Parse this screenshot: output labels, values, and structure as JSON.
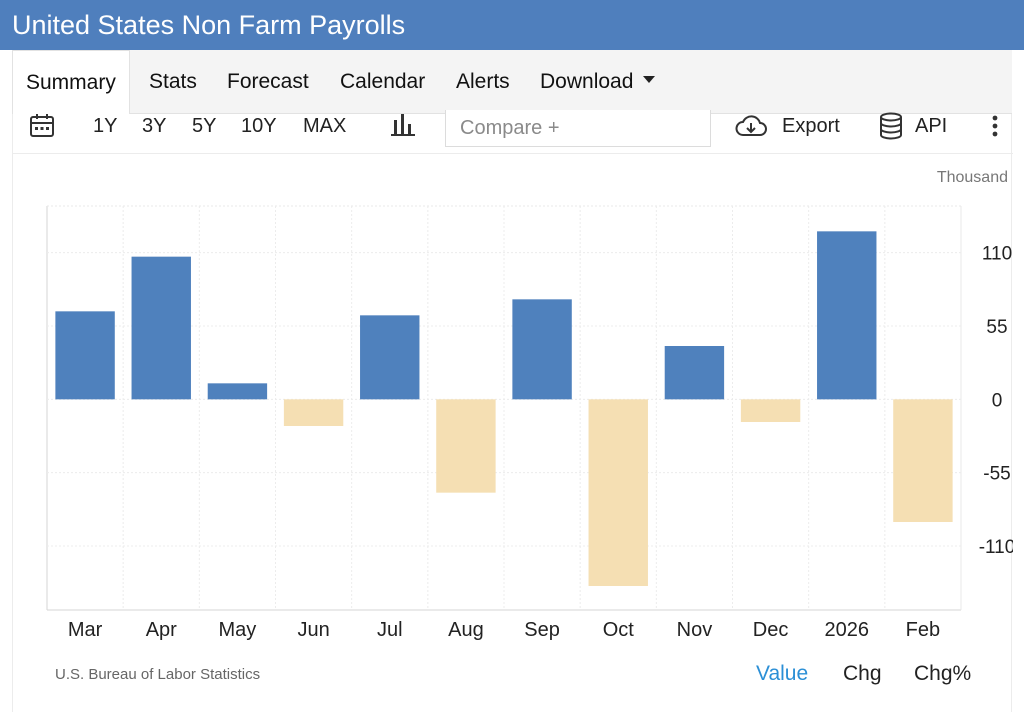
{
  "header": {
    "title": "United States Non Farm Payrolls"
  },
  "tabs": [
    {
      "label": "Summary",
      "active": true
    },
    {
      "label": "Stats"
    },
    {
      "label": "Forecast"
    },
    {
      "label": "Calendar"
    },
    {
      "label": "Alerts"
    },
    {
      "label": "Download"
    }
  ],
  "toolbar": {
    "ranges": [
      "1Y",
      "3Y",
      "5Y",
      "10Y",
      "MAX"
    ],
    "compare_placeholder": "Compare +",
    "export_label": "Export",
    "api_label": "API",
    "icons": [
      "calendar-icon",
      "bar-chart-icon",
      "cloud-download-icon",
      "database-icon",
      "more-vert-icon"
    ]
  },
  "colors": {
    "header": "#4f7fbd",
    "positive": "#4f81bd",
    "negative": "#f5dfb3",
    "active_option": "#2b8fd6"
  },
  "chart_data": {
    "type": "bar",
    "unit_label": "Thousand",
    "categories": [
      "Mar",
      "Apr",
      "May",
      "Jun",
      "Jul",
      "Aug",
      "Sep",
      "Oct",
      "Nov",
      "Dec",
      "2026",
      "Feb"
    ],
    "values": [
      66,
      107,
      12,
      -20,
      63,
      -70,
      75,
      -140,
      40,
      -17,
      126,
      -92
    ],
    "yticks": [
      110,
      55,
      0,
      -55,
      -110
    ],
    "ytick_labels": [
      "110",
      "55",
      "0",
      "-55",
      "-110"
    ],
    "ylim": [
      -158,
      145
    ],
    "grid": true,
    "y_axis_side": "right"
  },
  "footer": {
    "source": "U.S. Bureau of Labor Statistics",
    "options": [
      {
        "label": "Value",
        "active": true
      },
      {
        "label": "Chg"
      },
      {
        "label": "Chg%"
      }
    ]
  }
}
